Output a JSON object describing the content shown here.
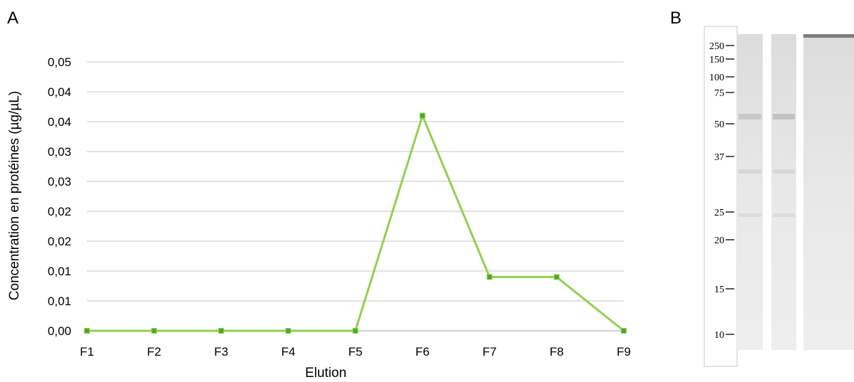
{
  "panels": {
    "a": "A",
    "b": "B"
  },
  "chart_data": {
    "type": "line",
    "categories": [
      "F1",
      "F2",
      "F3",
      "F4",
      "F5",
      "F6",
      "F7",
      "F8",
      "F9"
    ],
    "values": [
      0.0,
      0.0,
      0.0,
      0.0,
      0.0,
      0.04,
      0.01,
      0.01,
      0.0
    ],
    "xlabel": "Elution",
    "ylabel": "Concentration en protéines (µg/µL)",
    "ylim": [
      0,
      0.05
    ],
    "yticks": [
      "0,00",
      "0,01",
      "0,01",
      "0,02",
      "0,02",
      "0,03",
      "0,03",
      "0,04",
      "0,04",
      "0,05"
    ],
    "grid": true,
    "line_color": "#92d050",
    "marker_color": "#4ea72e"
  },
  "gel": {
    "markers": [
      "250",
      "150",
      "100",
      "75",
      "50",
      "37",
      "25",
      "20",
      "15",
      "10"
    ]
  }
}
